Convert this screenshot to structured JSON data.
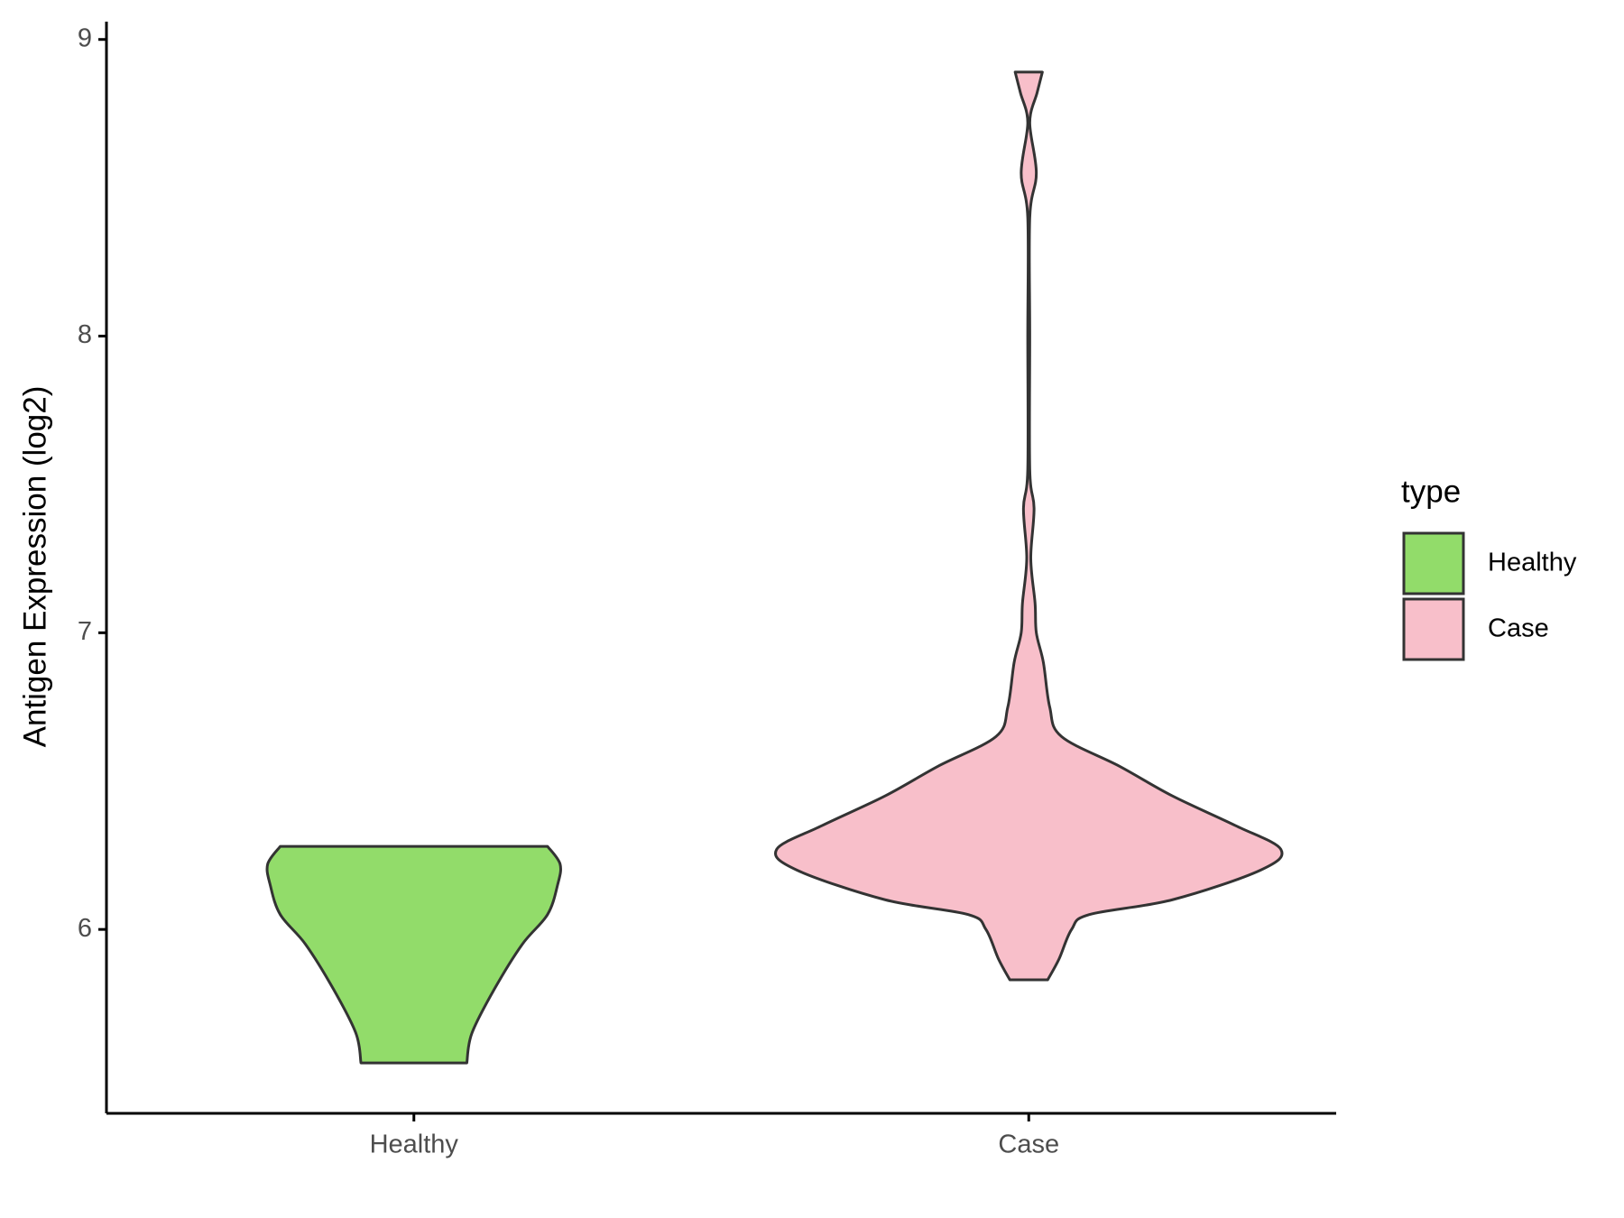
{
  "chart_data": {
    "type": "violin",
    "y_label": "Antigen Expression (log2)",
    "legend_title": "type",
    "legend": "right",
    "categories": [
      "Healthy",
      "Case"
    ],
    "series": [
      {
        "name": "Healthy",
        "color": "#92dc6a",
        "y": [
          5.55,
          5.65,
          5.8,
          5.95,
          6.05,
          6.15,
          6.22,
          6.28
        ],
        "density": [
          0.21,
          0.23,
          0.32,
          0.43,
          0.53,
          0.57,
          0.58,
          0.53
        ]
      },
      {
        "name": "Case",
        "color": "#f8bfca",
        "y": [
          5.83,
          5.9,
          6.0,
          6.05,
          6.1,
          6.2,
          6.27,
          6.35,
          6.45,
          6.55,
          6.65,
          6.75,
          6.9,
          7.0,
          7.1,
          7.25,
          7.42,
          7.55,
          8.0,
          8.4,
          8.55,
          8.72,
          8.82,
          8.89
        ],
        "density": [
          0.075,
          0.12,
          0.17,
          0.24,
          0.57,
          0.92,
          1.0,
          0.82,
          0.57,
          0.36,
          0.13,
          0.083,
          0.058,
          0.03,
          0.025,
          0.008,
          0.021,
          0.004,
          0.004,
          0.004,
          0.03,
          0.004,
          0.033,
          0.054
        ]
      }
    ],
    "ylim": [
      5.38,
      9.06
    ],
    "yticks": [
      6,
      7,
      8,
      9
    ]
  }
}
